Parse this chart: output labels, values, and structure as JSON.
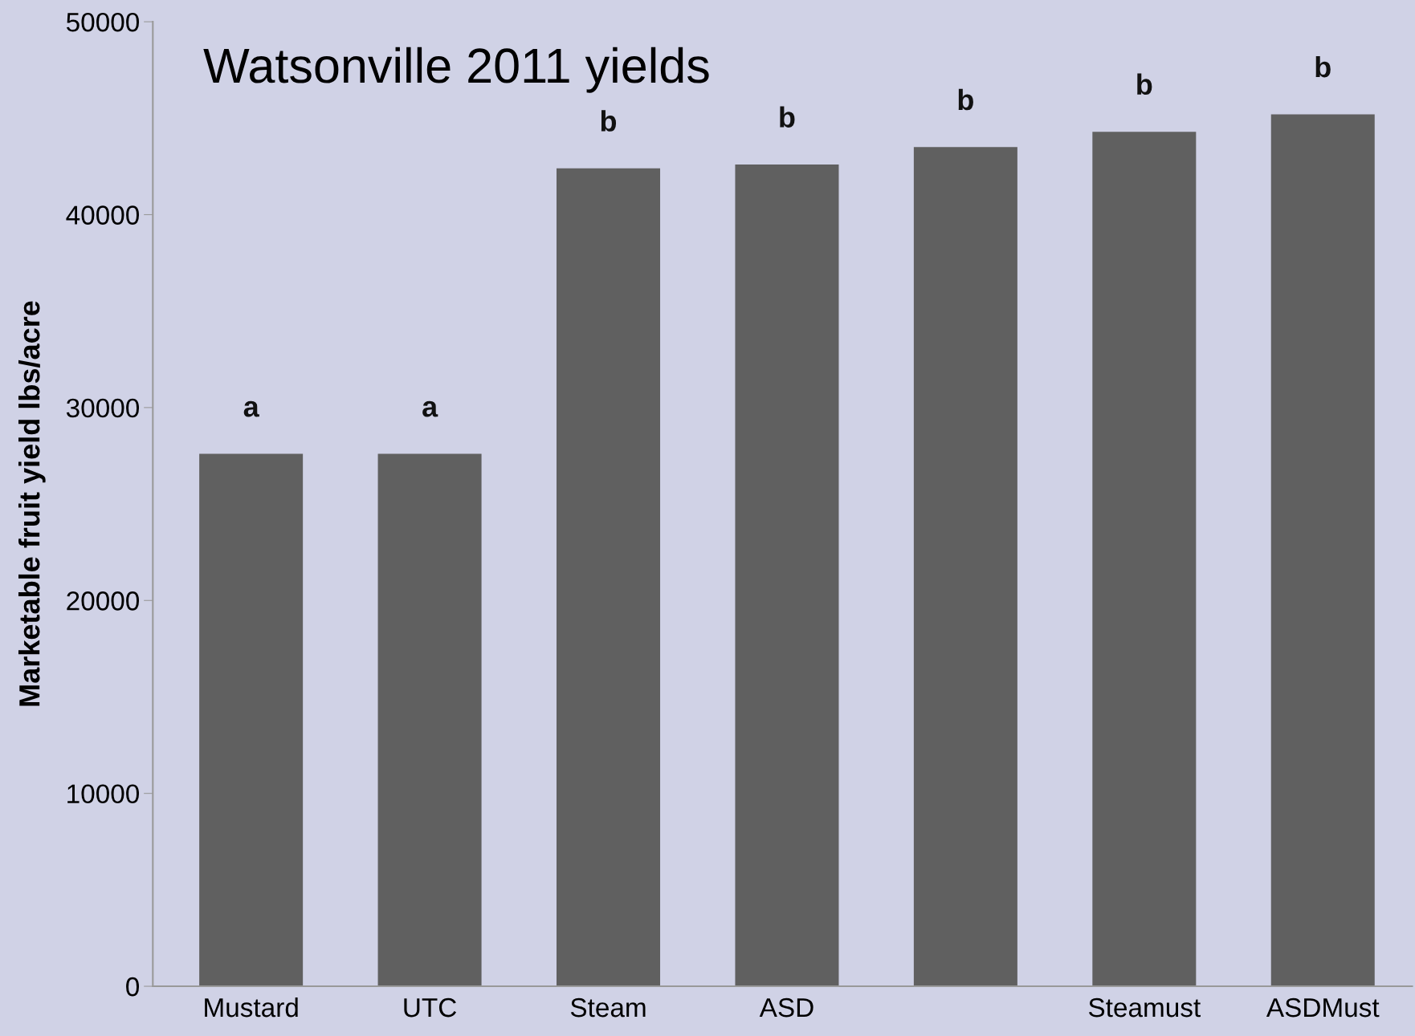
{
  "chart_data": {
    "type": "bar",
    "title": "Watsonville 2011 yields",
    "ylabel": "Marketable fruit yield lbs/acre",
    "categories": [
      "Mustard",
      "UTC",
      "Steam",
      "ASD",
      null,
      "Steamust",
      "ASDMust"
    ],
    "values": [
      27600,
      27600,
      42400,
      42600,
      43500,
      44300,
      45200
    ],
    "value_labels": [
      "a",
      "a",
      "b",
      "b",
      "b",
      "b",
      "b"
    ],
    "color": "#606060",
    "ylim": [
      0,
      50000
    ],
    "yticks": [
      0,
      10000,
      20000,
      30000,
      40000,
      50000
    ],
    "grid": false,
    "legend": false
  }
}
